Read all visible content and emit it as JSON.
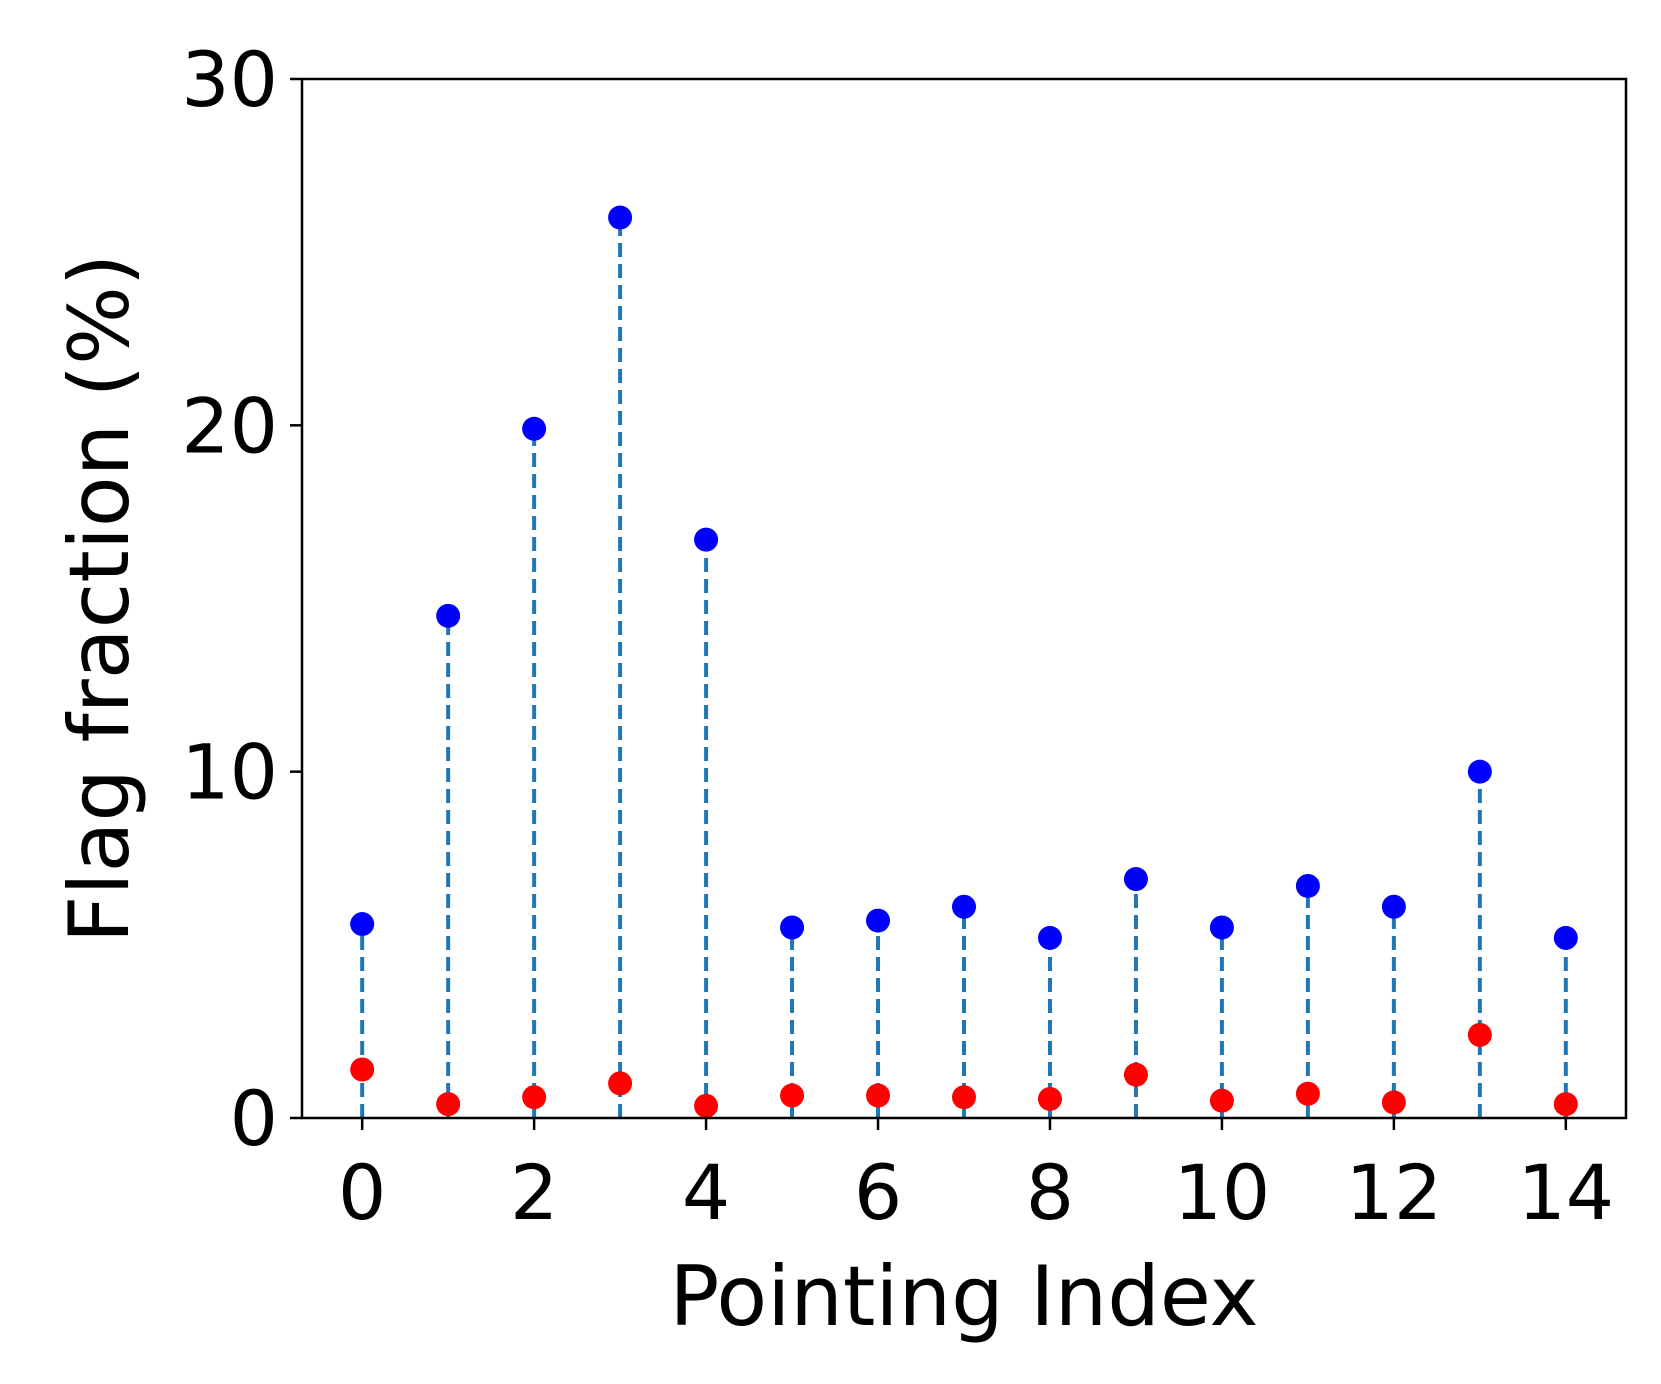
{
  "chart_data": {
    "type": "scatter",
    "title": "",
    "xlabel": "Pointing Index",
    "ylabel": "Flag fraction (%)",
    "xlim": [
      -0.7,
      14.7
    ],
    "ylim": [
      0,
      30
    ],
    "xticks": [
      0,
      2,
      4,
      6,
      8,
      10,
      12,
      14
    ],
    "yticks": [
      0,
      10,
      20,
      30
    ],
    "grid": false,
    "stems": {
      "color": "#1f77b4",
      "style": "dashed",
      "from_series": 0
    },
    "series": [
      {
        "color": "#0000ff",
        "x": [
          0,
          1,
          2,
          3,
          4,
          5,
          6,
          7,
          8,
          9,
          10,
          11,
          12,
          13,
          14
        ],
        "y": [
          5.6,
          14.5,
          19.9,
          26.0,
          16.7,
          5.5,
          5.7,
          6.1,
          5.2,
          6.9,
          5.5,
          6.7,
          6.1,
          10.0,
          5.2
        ]
      },
      {
        "color": "#ff0000",
        "x": [
          0,
          1,
          2,
          3,
          4,
          5,
          6,
          7,
          8,
          9,
          10,
          11,
          12,
          13,
          14
        ],
        "y": [
          1.4,
          0.4,
          0.6,
          1.0,
          0.35,
          0.65,
          0.65,
          0.6,
          0.55,
          1.25,
          0.5,
          0.7,
          0.45,
          2.4,
          0.4
        ]
      }
    ]
  }
}
